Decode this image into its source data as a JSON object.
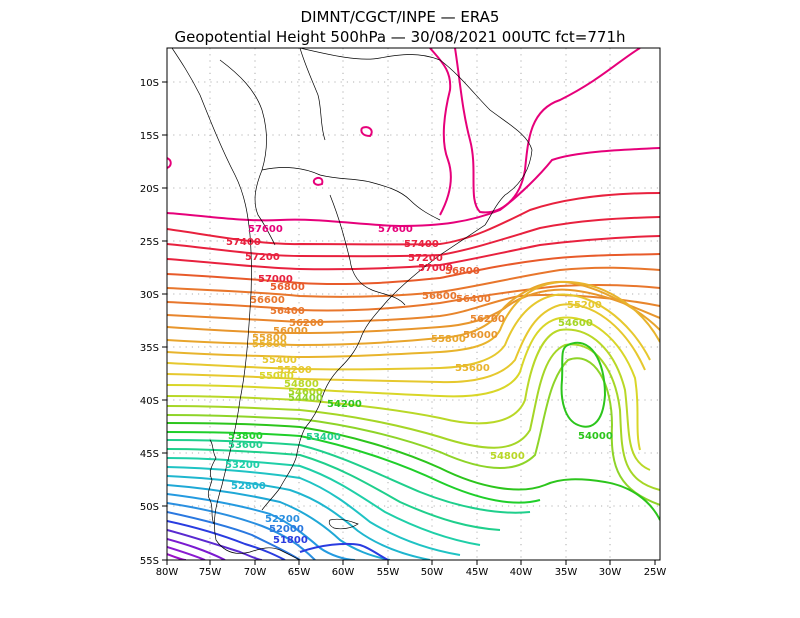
{
  "header": {
    "title_line1": "DIMNT/CGCT/INPE —  ERA5",
    "title_line2": "Geopotential Height 500hPa —  30/08/2021 00UTC fct=771h"
  },
  "axes": {
    "lon_labels": [
      "80W",
      "75W",
      "70W",
      "65W",
      "60W",
      "55W",
      "50W",
      "45W",
      "40W",
      "35W",
      "30W",
      "25W"
    ],
    "lat_labels": [
      "10S",
      "15S",
      "20S",
      "25S",
      "30S",
      "35S",
      "40S",
      "45S",
      "50S",
      "55S"
    ]
  },
  "chart_data": {
    "type": "contour-map",
    "variable": "Geopotential Height 500hPa",
    "contour_interval": 200,
    "lon_range": [
      "80W",
      "25W"
    ],
    "lat_range": [
      "8S",
      "55S"
    ],
    "contour_labels": [
      {
        "text": "57600",
        "color": "#e6007a"
      },
      {
        "text": "57600",
        "color": "#e6007a"
      },
      {
        "text": "57400",
        "color": "#e8213e"
      },
      {
        "text": "57400",
        "color": "#e8213e"
      },
      {
        "text": "57200",
        "color": "#e8213e"
      },
      {
        "text": "57200",
        "color": "#e8213e"
      },
      {
        "text": "57000",
        "color": "#e8213e"
      },
      {
        "text": "57000",
        "color": "#e8213e"
      },
      {
        "text": "56800",
        "color": "#e85a2a"
      },
      {
        "text": "56800",
        "color": "#e85a2a"
      },
      {
        "text": "56600",
        "color": "#e8762c"
      },
      {
        "text": "56600",
        "color": "#e8762c"
      },
      {
        "text": "56400",
        "color": "#e8762c"
      },
      {
        "text": "56400",
        "color": "#e8762c"
      },
      {
        "text": "56200",
        "color": "#e8852c"
      },
      {
        "text": "56200",
        "color": "#e8852c"
      },
      {
        "text": "56000",
        "color": "#e8962c"
      },
      {
        "text": "56000",
        "color": "#e8962c"
      },
      {
        "text": "55800",
        "color": "#e8a52c"
      },
      {
        "text": "55800",
        "color": "#e8a52c"
      },
      {
        "text": "55600",
        "color": "#e8b42c"
      },
      {
        "text": "55600",
        "color": "#e8b42c"
      },
      {
        "text": "55400",
        "color": "#e6c82e"
      },
      {
        "text": "55200",
        "color": "#e6c82e"
      },
      {
        "text": "55200",
        "color": "#e6c82e"
      },
      {
        "text": "55000",
        "color": "#d9d628"
      },
      {
        "text": "54800",
        "color": "#b9d827"
      },
      {
        "text": "54800",
        "color": "#b9d827"
      },
      {
        "text": "54600",
        "color": "#a5d626"
      },
      {
        "text": "54600",
        "color": "#a5d626"
      },
      {
        "text": "54400",
        "color": "#8ed428"
      },
      {
        "text": "54200",
        "color": "#2cc51c"
      },
      {
        "text": "54000",
        "color": "#2cc51c"
      },
      {
        "text": "53800",
        "color": "#1fcf2a"
      },
      {
        "text": "53600",
        "color": "#1fcf8c"
      },
      {
        "text": "53400",
        "color": "#1fcf8c"
      },
      {
        "text": "53200",
        "color": "#1fcfa8"
      },
      {
        "text": "52800",
        "color": "#1fb6cf"
      },
      {
        "text": "52200",
        "color": "#2a8fe0"
      },
      {
        "text": "52000",
        "color": "#2a78e0"
      },
      {
        "text": "51800",
        "color": "#2a3ce0"
      }
    ],
    "closed_low": {
      "center": "35W 38S",
      "label": "54000"
    },
    "colors": {
      "magenta": "#e6007a",
      "red": "#e8213e",
      "orange": "#e8762c",
      "yellow": "#e6c82e",
      "lime": "#8ed428",
      "green": "#1fcf2a",
      "cyan": "#1fcfa8",
      "blue": "#2a78e0",
      "darkblue": "#2a3ce0",
      "purple": "#8a1ad0"
    }
  }
}
